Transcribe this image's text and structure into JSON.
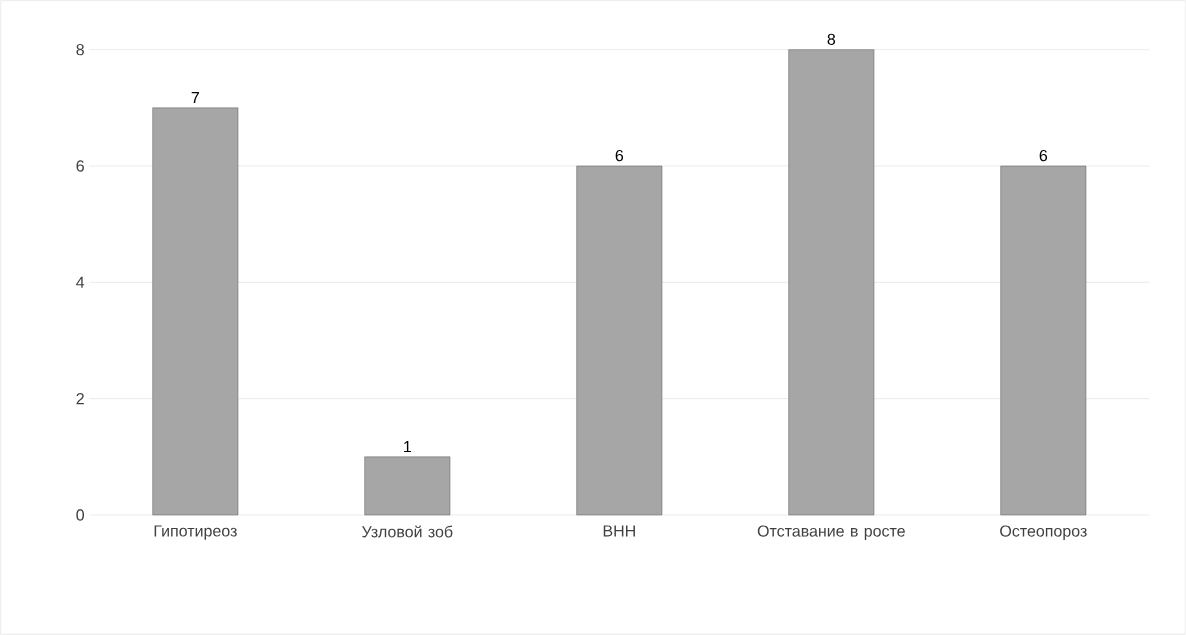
{
  "chart_data": {
    "type": "bar",
    "categories": [
      "Гипотиреоз",
      "Узловой зоб",
      "ВНН",
      "Отставание в росте",
      "Остеопороз"
    ],
    "values": [
      7,
      1,
      6,
      8,
      6
    ],
    "color": "#a6a6a6",
    "ylim": [
      0,
      8
    ],
    "yticks": [
      0,
      2,
      4,
      6,
      8
    ],
    "grid": "y",
    "data_labels": true
  }
}
